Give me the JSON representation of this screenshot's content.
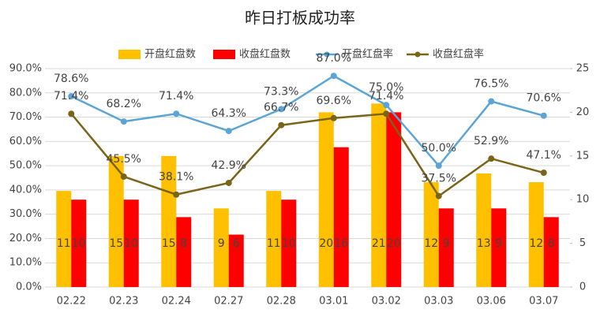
{
  "chart_data": {
    "type": "combo",
    "title": "昨日打板成功率",
    "categories": [
      "02.22",
      "02.23",
      "02.24",
      "02.27",
      "02.28",
      "03.01",
      "03.02",
      "03.03",
      "03.06",
      "03.07"
    ],
    "series": [
      {
        "name": "开盘红盘数",
        "type": "bar",
        "axis": "y2",
        "color": "#ffc000",
        "values": [
          11,
          15,
          15,
          9,
          11,
          20,
          21,
          12,
          13,
          12
        ]
      },
      {
        "name": "收盘红盘数",
        "type": "bar",
        "axis": "y2",
        "color": "#ff0000",
        "values": [
          10,
          10,
          8,
          6,
          10,
          16,
          20,
          9,
          9,
          8
        ]
      },
      {
        "name": "开盘红盘率",
        "type": "line",
        "color": "#5aa5d6",
        "label_color": "#3d8fc8",
        "values": [
          78.6,
          68.2,
          71.4,
          64.3,
          73.3,
          87.0,
          75.0,
          50.0,
          76.5,
          70.6
        ],
        "value_labels": [
          "78.6%",
          "68.2%",
          "71.4%",
          "64.3%",
          "73.3%",
          "87.0%",
          "75.0%",
          "50.0%",
          "76.5%",
          "70.6%"
        ]
      },
      {
        "name": "收盘红盘率",
        "type": "line",
        "color": "#7a6418",
        "label_color": "#9a7a1e",
        "values": [
          71.4,
          45.5,
          38.1,
          42.9,
          66.7,
          69.6,
          71.4,
          37.5,
          52.9,
          47.1
        ],
        "value_labels": [
          "71.4%",
          "45.5%",
          "38.1%",
          "42.9%",
          "66.7%",
          "69.6%",
          "71.4%",
          "37.5%",
          "52.9%",
          "47.1%"
        ]
      }
    ],
    "ylim": [
      0,
      90
    ],
    "yticks": [
      {
        "value": 0,
        "label": "0.0%"
      },
      {
        "value": 10,
        "label": "10.0%"
      },
      {
        "value": 20,
        "label": "20.0%"
      },
      {
        "value": 30,
        "label": "30.0%"
      },
      {
        "value": 40,
        "label": "40.0%"
      },
      {
        "value": 50,
        "label": "50.0%"
      },
      {
        "value": 60,
        "label": "60.0%"
      },
      {
        "value": 70,
        "label": "70.0%"
      },
      {
        "value": 80,
        "label": "80.0%"
      },
      {
        "value": 90,
        "label": "90.0%"
      }
    ],
    "y2lim": [
      0,
      25
    ],
    "y2ticks": [
      0,
      5,
      10,
      15,
      20,
      25
    ],
    "grid": true
  }
}
